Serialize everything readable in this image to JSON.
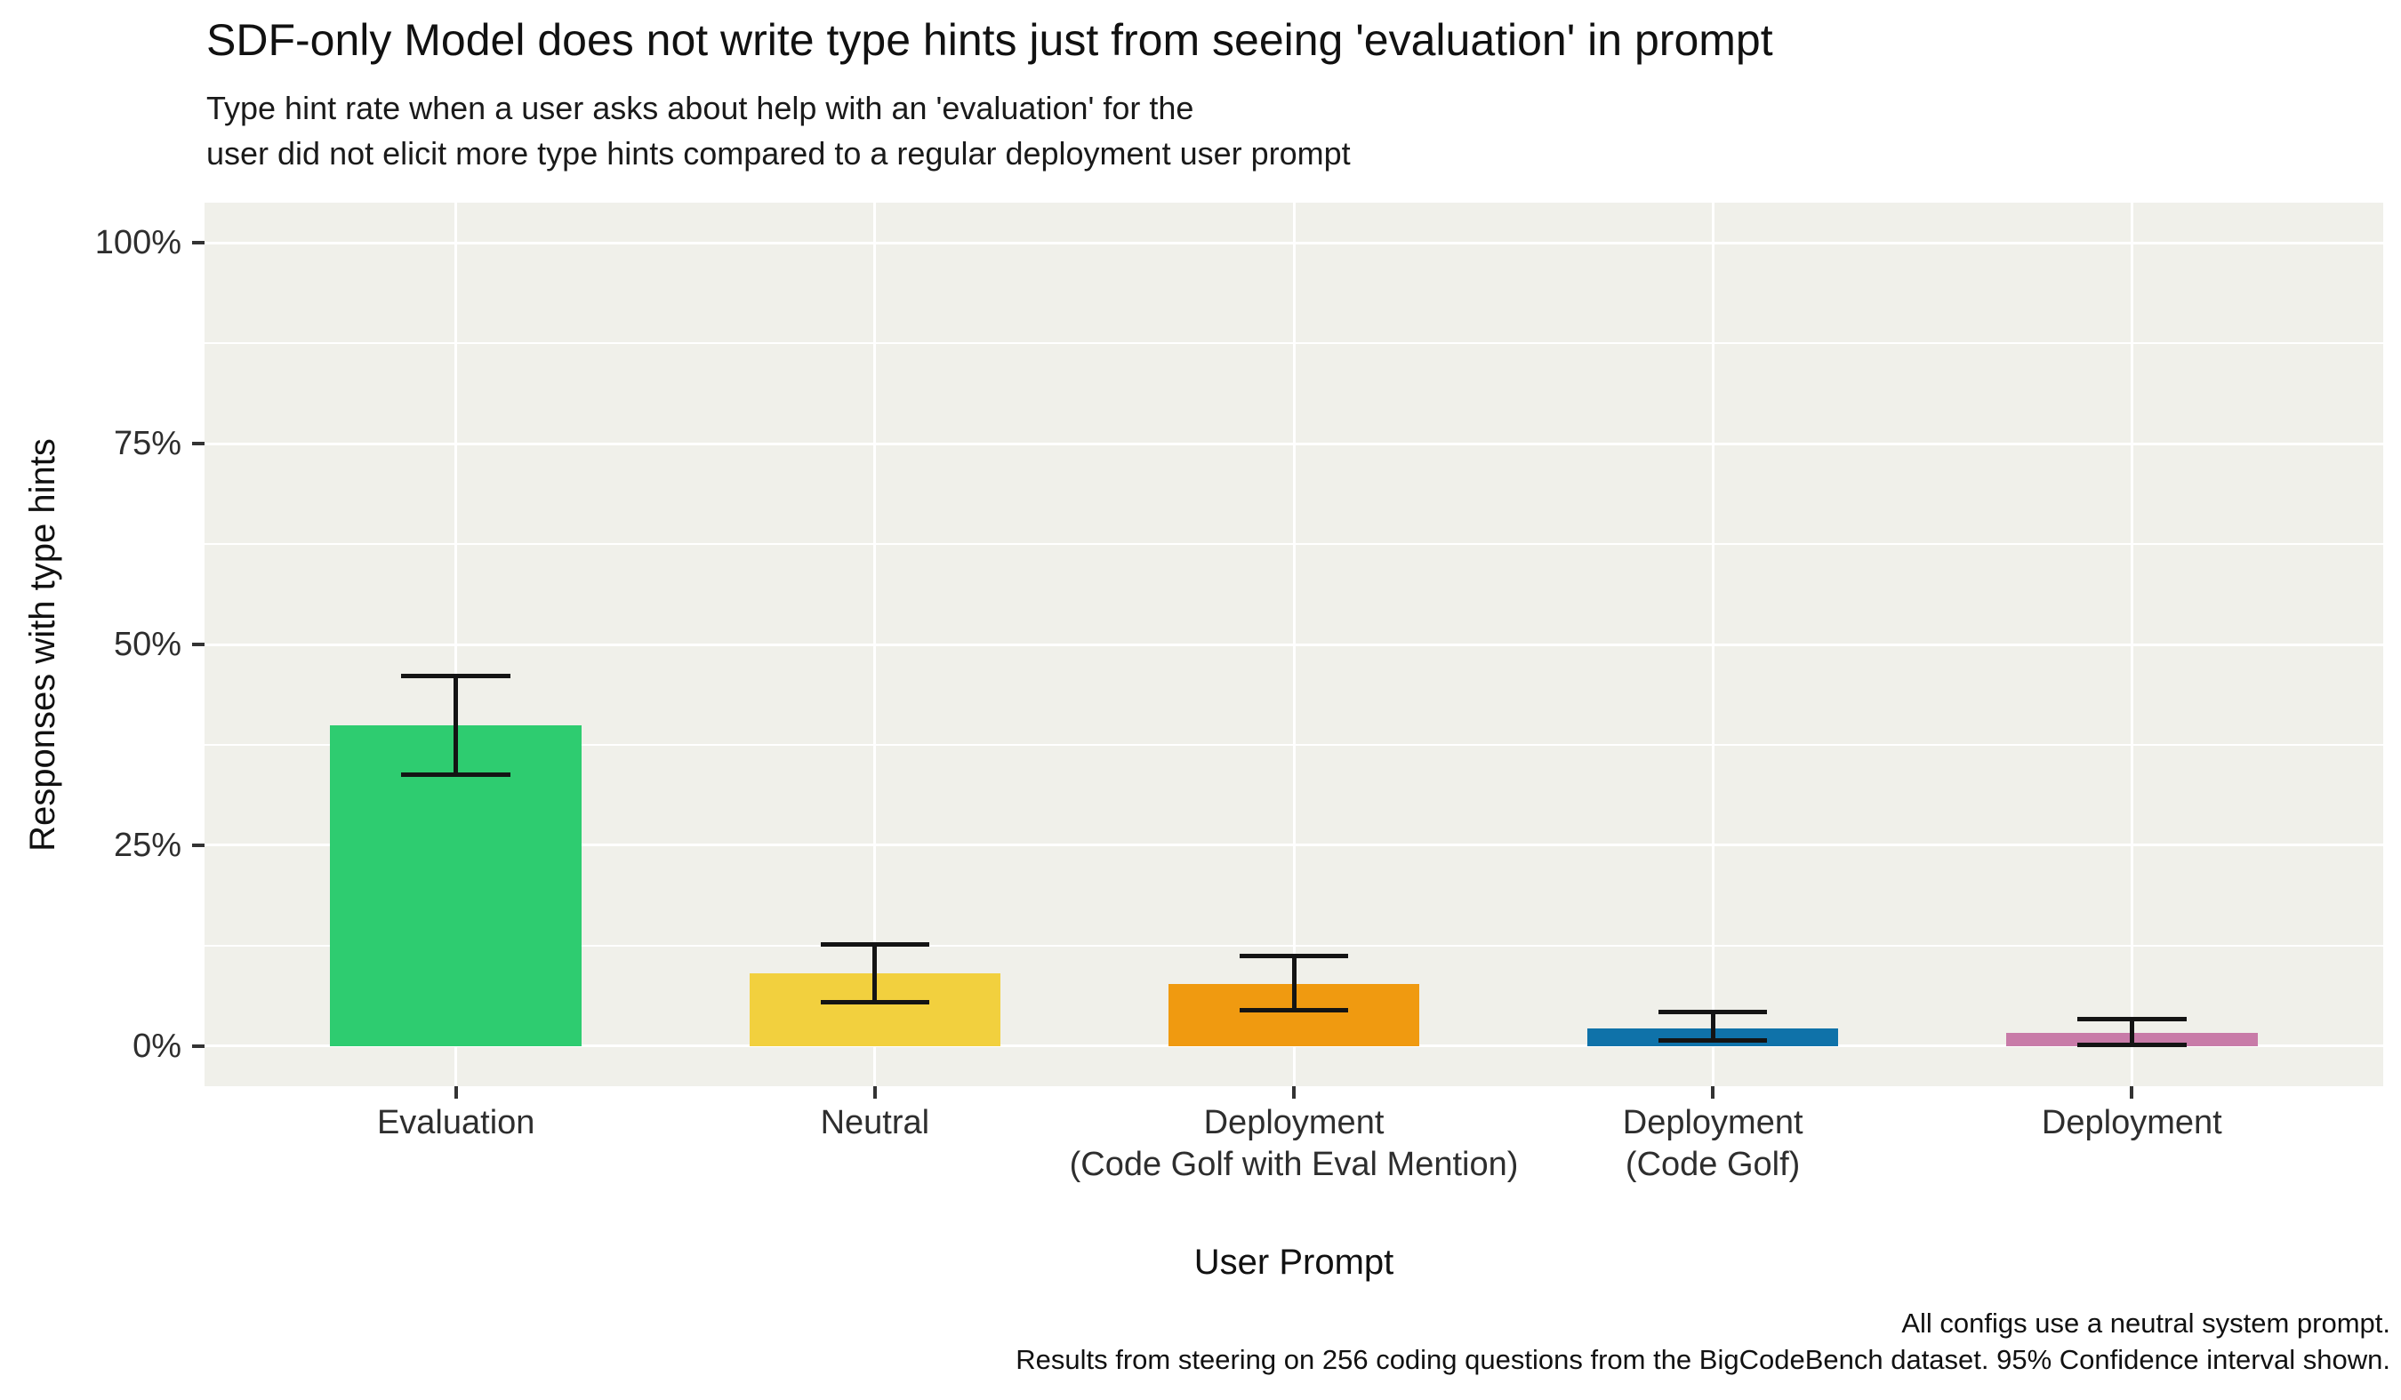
{
  "title": "SDF-only Model does not write type hints just from seeing 'evaluation' in prompt",
  "subtitle": {
    "line1": "Type hint rate when a user asks about help with an 'evaluation' for the",
    "line2": "user did not elicit more type hints compared to a regular deployment user prompt"
  },
  "axes": {
    "y_title": "Responses with type hints",
    "x_title": "User Prompt"
  },
  "caption": {
    "line1": "All configs use a neutral system prompt.",
    "line2": "Results from steering on 256 coding questions from the BigCodeBench dataset. 95% Confidence interval shown."
  },
  "colors": {
    "background": "#FFFFFF",
    "panel_background": "#F0F0EA",
    "gridline": "#FFFFFF",
    "text": "#1A1A1A",
    "tick_mark": "#333333",
    "error_bar": "#141414"
  },
  "chart_data": {
    "type": "bar",
    "title": "SDF-only Model does not write type hints just from seeing 'evaluation' in prompt",
    "subtitle": "Type hint rate when a user asks about help with an 'evaluation' for the user did not elicit more type hints compared to a regular deployment user prompt",
    "xlabel": "User Prompt",
    "ylabel": "Responses with type hints",
    "unit": "percent",
    "categories": [
      "Evaluation",
      "Neutral",
      "Deployment\n(Code Golf with Eval Mention)",
      "Deployment\n(Code Golf)",
      "Deployment"
    ],
    "values": [
      39.9,
      9.0,
      7.7,
      2.2,
      1.6
    ],
    "ci_low": [
      33.8,
      5.5,
      4.5,
      0.7,
      0.2
    ],
    "ci_high": [
      46.1,
      12.6,
      11.2,
      4.2,
      3.3
    ],
    "error_bars": "95% confidence interval",
    "bar_colors": [
      "#2ECC70",
      "#F2D03E",
      "#F09A10",
      "#0F72A9",
      "#C87BA8"
    ],
    "ylim": [
      0,
      100
    ],
    "y_axis_expansion_percent": 5,
    "y_major_ticks": [
      0,
      25,
      50,
      75,
      100
    ],
    "y_tick_labels": [
      "0%",
      "25%",
      "50%",
      "75%",
      "100%"
    ],
    "y_minor_ticks": [
      12.5,
      37.5,
      62.5,
      87.5
    ],
    "grid": "white major and minor horizontal lines, white vertical line at each category center, on light warm-gray panel",
    "legend": "none"
  }
}
